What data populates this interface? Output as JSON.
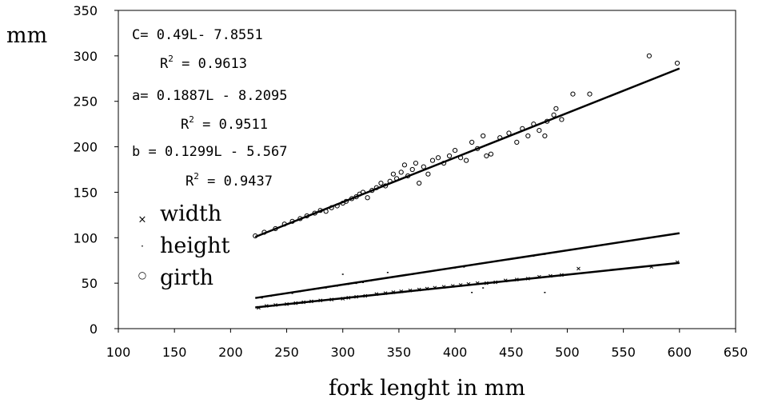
{
  "chart_data": {
    "type": "scatter",
    "xlabel": "fork lenght in mm",
    "ylabel": "mm",
    "xlim": [
      100,
      650
    ],
    "ylim": [
      0,
      350
    ],
    "x_ticks": [
      100,
      150,
      200,
      250,
      300,
      350,
      400,
      450,
      500,
      550,
      600,
      650
    ],
    "y_ticks": [
      0,
      50,
      100,
      150,
      200,
      250,
      300,
      350
    ],
    "grid": false,
    "legend_position": "left-middle",
    "equations": [
      {
        "text": "C= 0.49L- 7.8551",
        "r2_prefix": "R",
        "r2_sup": "2",
        "r2_value": " = 0.9613"
      },
      {
        "text": "a= 0.1887L - 8.2095",
        "r2_prefix": "R",
        "r2_sup": "2",
        "r2_value": " = 0.9511"
      },
      {
        "text": "b = 0.1299L - 5.567",
        "r2_prefix": "R",
        "r2_sup": "2",
        "r2_value": " = 0.9437"
      }
    ],
    "series": [
      {
        "name": "width",
        "marker": "×",
        "trend": {
          "slope": 0.1299,
          "intercept": -5.567,
          "x_range": [
            222,
            600
          ]
        },
        "points": [
          [
            225,
            23
          ],
          [
            232,
            25
          ],
          [
            240,
            26
          ],
          [
            250,
            27
          ],
          [
            258,
            28
          ],
          [
            265,
            29
          ],
          [
            272,
            30
          ],
          [
            280,
            31
          ],
          [
            290,
            32
          ],
          [
            300,
            33
          ],
          [
            305,
            34
          ],
          [
            312,
            35
          ],
          [
            320,
            36
          ],
          [
            330,
            38
          ],
          [
            338,
            39
          ],
          [
            345,
            40
          ],
          [
            352,
            41
          ],
          [
            360,
            42
          ],
          [
            368,
            43
          ],
          [
            375,
            44
          ],
          [
            382,
            45
          ],
          [
            390,
            46
          ],
          [
            398,
            47
          ],
          [
            405,
            48
          ],
          [
            412,
            49
          ],
          [
            420,
            50
          ],
          [
            428,
            50
          ],
          [
            436,
            51
          ],
          [
            445,
            53
          ],
          [
            455,
            54
          ],
          [
            465,
            55
          ],
          [
            475,
            57
          ],
          [
            485,
            58
          ],
          [
            495,
            59
          ],
          [
            510,
            66
          ],
          [
            575,
            68
          ],
          [
            598,
            73
          ]
        ]
      },
      {
        "name": "height",
        "marker": "·",
        "trend": {
          "slope": 0.1887,
          "intercept": -8.2095,
          "x_range": [
            222,
            600
          ]
        },
        "points": [
          [
            228,
            34
          ],
          [
            236,
            36
          ],
          [
            245,
            38
          ],
          [
            255,
            39
          ],
          [
            262,
            41
          ],
          [
            270,
            43
          ],
          [
            278,
            44
          ],
          [
            285,
            45
          ],
          [
            295,
            47
          ],
          [
            305,
            49
          ],
          [
            312,
            50
          ],
          [
            318,
            51
          ],
          [
            325,
            53
          ],
          [
            332,
            55
          ],
          [
            340,
            56
          ],
          [
            348,
            58
          ],
          [
            355,
            59
          ],
          [
            362,
            60
          ],
          [
            370,
            62
          ],
          [
            378,
            63
          ],
          [
            385,
            65
          ],
          [
            392,
            66
          ],
          [
            400,
            67
          ],
          [
            408,
            68
          ],
          [
            415,
            70
          ],
          [
            422,
            72
          ],
          [
            430,
            73
          ],
          [
            440,
            75
          ],
          [
            450,
            77
          ],
          [
            460,
            79
          ],
          [
            470,
            80
          ],
          [
            480,
            82
          ],
          [
            490,
            84
          ],
          [
            415,
            40
          ],
          [
            425,
            45
          ],
          [
            300,
            60
          ],
          [
            340,
            62
          ],
          [
            480,
            40
          ]
        ]
      },
      {
        "name": "girth",
        "marker": "○",
        "trend": {
          "slope": 0.49,
          "intercept": -7.8551,
          "x_range": [
            222,
            600
          ]
        },
        "points": [
          [
            222,
            102
          ],
          [
            230,
            106
          ],
          [
            240,
            110
          ],
          [
            248,
            115
          ],
          [
            255,
            118
          ],
          [
            262,
            121
          ],
          [
            268,
            124
          ],
          [
            275,
            127
          ],
          [
            280,
            130
          ],
          [
            285,
            129
          ],
          [
            290,
            133
          ],
          [
            295,
            135
          ],
          [
            300,
            138
          ],
          [
            303,
            140
          ],
          [
            308,
            143
          ],
          [
            312,
            145
          ],
          [
            315,
            148
          ],
          [
            318,
            150
          ],
          [
            322,
            144
          ],
          [
            326,
            152
          ],
          [
            330,
            155
          ],
          [
            334,
            160
          ],
          [
            338,
            157
          ],
          [
            342,
            162
          ],
          [
            345,
            170
          ],
          [
            348,
            165
          ],
          [
            352,
            172
          ],
          [
            355,
            180
          ],
          [
            358,
            168
          ],
          [
            362,
            175
          ],
          [
            365,
            182
          ],
          [
            368,
            160
          ],
          [
            372,
            178
          ],
          [
            376,
            170
          ],
          [
            380,
            185
          ],
          [
            385,
            188
          ],
          [
            390,
            182
          ],
          [
            395,
            190
          ],
          [
            400,
            196
          ],
          [
            405,
            188
          ],
          [
            410,
            185
          ],
          [
            415,
            205
          ],
          [
            420,
            198
          ],
          [
            425,
            212
          ],
          [
            428,
            190
          ],
          [
            432,
            192
          ],
          [
            440,
            210
          ],
          [
            448,
            215
          ],
          [
            455,
            205
          ],
          [
            460,
            220
          ],
          [
            465,
            212
          ],
          [
            470,
            225
          ],
          [
            475,
            218
          ],
          [
            480,
            212
          ],
          [
            482,
            228
          ],
          [
            488,
            235
          ],
          [
            490,
            242
          ],
          [
            495,
            230
          ],
          [
            505,
            258
          ],
          [
            520,
            258
          ],
          [
            573,
            300
          ],
          [
            598,
            292
          ]
        ]
      }
    ]
  }
}
